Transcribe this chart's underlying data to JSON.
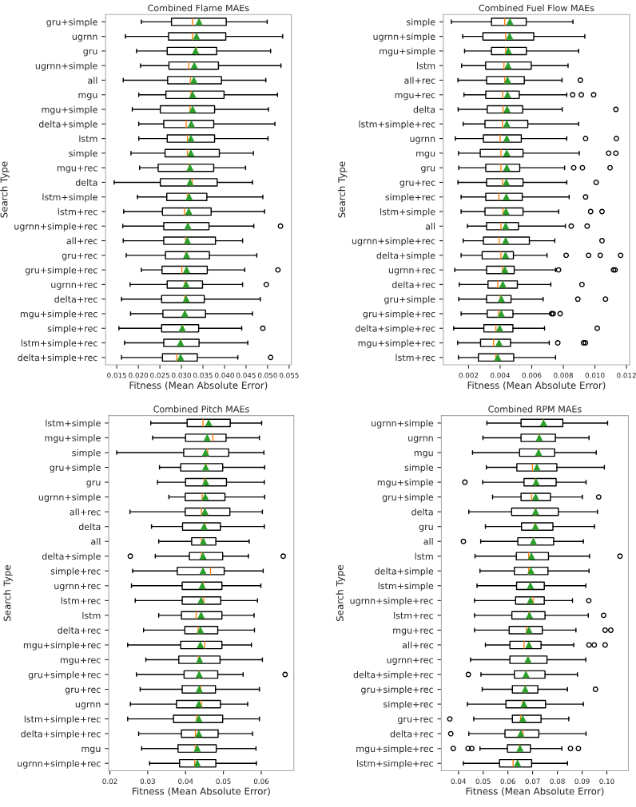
{
  "chart_data": [
    {
      "type": "box",
      "title": "Combined Flame MAEs",
      "xlabel": "Fitness (Mean Absolute Error)",
      "ylabel": "Search Type",
      "orientation": "horizontal",
      "grid": false,
      "legend": false,
      "categories": [
        "gru+simple",
        "ugrnn",
        "gru",
        "ugrnn+simple",
        "all",
        "mgu",
        "mgu+simple",
        "delta+simple",
        "lstm",
        "simple",
        "mgu+rec",
        "delta",
        "lstm+simple",
        "lstm+rec",
        "ugrnn+simple+rec",
        "all+rec",
        "gru+rec",
        "gru+simple+rec",
        "ugrnn+rec",
        "delta+rec",
        "mgu+simple+rec",
        "simple+rec",
        "lstm+simple+rec",
        "delta+simple+rec"
      ],
      "xlim": [
        0.0124,
        0.0555
      ],
      "xticks": [
        0.015,
        {
          "value": 0.02,
          "label": "0.020"
        },
        0.025,
        {
          "value": 0.03,
          "label": "0.030"
        },
        0.035,
        {
          "value": 0.04,
          "label": "0.040"
        },
        0.045,
        {
          "value": 0.05,
          "label": "0.050"
        },
        0.055
      ],
      "boxes": [
        {
          "low": 0.0207,
          "q1": 0.0277,
          "median": 0.0326,
          "q3": 0.0404,
          "high": 0.0499,
          "mean": 0.0341
        },
        {
          "low": 0.017,
          "q1": 0.027,
          "median": 0.0326,
          "q3": 0.0403,
          "high": 0.0535,
          "mean": 0.0335
        },
        {
          "low": 0.0196,
          "q1": 0.0267,
          "median": 0.0335,
          "q3": 0.0382,
          "high": 0.0507,
          "mean": 0.0333
        },
        {
          "low": 0.0205,
          "q1": 0.0271,
          "median": 0.0317,
          "q3": 0.0386,
          "high": 0.0531,
          "mean": 0.033
        },
        {
          "low": 0.0165,
          "q1": 0.0268,
          "median": 0.0321,
          "q3": 0.0393,
          "high": 0.0496,
          "mean": 0.0329
        },
        {
          "low": 0.0201,
          "q1": 0.0264,
          "median": 0.0322,
          "q3": 0.0399,
          "high": 0.0523,
          "mean": 0.0326
        },
        {
          "low": 0.0186,
          "q1": 0.0251,
          "median": 0.032,
          "q3": 0.0377,
          "high": 0.0502,
          "mean": 0.0326
        },
        {
          "low": 0.0201,
          "q1": 0.0259,
          "median": 0.0311,
          "q3": 0.0375,
          "high": 0.0517,
          "mean": 0.0323
        },
        {
          "low": 0.0201,
          "q1": 0.0267,
          "median": 0.0314,
          "q3": 0.0377,
          "high": 0.0501,
          "mean": 0.0322
        },
        {
          "low": 0.0183,
          "q1": 0.0262,
          "median": 0.0314,
          "q3": 0.0388,
          "high": 0.0467,
          "mean": 0.0322
        },
        {
          "low": 0.0203,
          "q1": 0.0246,
          "median": 0.0318,
          "q3": 0.0375,
          "high": 0.0449,
          "mean": 0.032
        },
        {
          "low": 0.0144,
          "q1": 0.0251,
          "median": 0.0325,
          "q3": 0.0383,
          "high": 0.0465,
          "mean": 0.032
        },
        {
          "low": 0.0198,
          "q1": 0.0266,
          "median": 0.0314,
          "q3": 0.0359,
          "high": 0.0489,
          "mean": 0.0318
        },
        {
          "low": 0.0166,
          "q1": 0.0256,
          "median": 0.0307,
          "q3": 0.0369,
          "high": 0.0493,
          "mean": 0.0317
        },
        {
          "low": 0.0164,
          "q1": 0.0259,
          "median": 0.0316,
          "q3": 0.0364,
          "high": 0.0468,
          "mean": 0.0315,
          "outliers": [
            0.053
          ]
        },
        {
          "low": 0.0165,
          "q1": 0.0259,
          "median": 0.031,
          "q3": 0.0379,
          "high": 0.0442,
          "mean": 0.0314
        },
        {
          "low": 0.0172,
          "q1": 0.0263,
          "median": 0.031,
          "q3": 0.0365,
          "high": 0.0475,
          "mean": 0.0312
        },
        {
          "low": 0.0207,
          "q1": 0.0255,
          "median": 0.0301,
          "q3": 0.036,
          "high": 0.0447,
          "mean": 0.0312,
          "outliers": [
            0.0524
          ]
        },
        {
          "low": 0.0181,
          "q1": 0.0267,
          "median": 0.0308,
          "q3": 0.0349,
          "high": 0.0442,
          "mean": 0.0311,
          "outliers": [
            0.0497
          ]
        },
        {
          "low": 0.0161,
          "q1": 0.0254,
          "median": 0.0308,
          "q3": 0.0353,
          "high": 0.0483,
          "mean": 0.0311
        },
        {
          "low": 0.0182,
          "q1": 0.0257,
          "median": 0.0309,
          "q3": 0.0356,
          "high": 0.0465,
          "mean": 0.0308
        },
        {
          "low": 0.0155,
          "q1": 0.0254,
          "median": 0.0303,
          "q3": 0.034,
          "high": 0.044,
          "mean": 0.0302,
          "outliers": [
            0.0489
          ]
        },
        {
          "low": 0.0168,
          "q1": 0.0259,
          "median": 0.0299,
          "q3": 0.0341,
          "high": 0.0454,
          "mean": 0.0298
        },
        {
          "low": 0.0161,
          "q1": 0.0256,
          "median": 0.0289,
          "q3": 0.0337,
          "high": 0.0431,
          "mean": 0.0298,
          "outliers": [
            0.0507
          ]
        }
      ]
    },
    {
      "type": "box",
      "title": "Combined Fuel Flow MAEs",
      "xlabel": "Fitness (Mean Absolute Error)",
      "ylabel": "Search Type",
      "orientation": "horizontal",
      "grid": false,
      "legend": false,
      "categories": [
        "simple",
        "ugrnn+simple",
        "mgu+simple",
        "lstm",
        "all+rec",
        "mgu+rec",
        "delta",
        "lstm+simple+rec",
        "ugrnn",
        "mgu",
        "gru",
        "gru+rec",
        "simple+rec",
        "lstm+simple",
        "all",
        "ugrnn+simple+rec",
        "delta+simple",
        "ugrnn+rec",
        "delta+rec",
        "gru+simple",
        "gru+simple+rec",
        "delta+simple+rec",
        "mgu+simple+rec",
        "lstm+rec"
      ],
      "xlim": [
        0.0004,
        0.0122
      ],
      "xticks": [
        0.002,
        0.004,
        0.006,
        0.008,
        {
          "value": 0.01,
          "label": "0.010"
        },
        0.012
      ],
      "boxes": [
        {
          "low": 0.00091,
          "q1": 0.00345,
          "median": 0.00429,
          "q3": 0.00565,
          "high": 0.00861,
          "mean": 0.00462
        },
        {
          "low": 0.00163,
          "q1": 0.00291,
          "median": 0.00435,
          "q3": 0.00613,
          "high": 0.00936,
          "mean": 0.0046
        },
        {
          "low": 0.00175,
          "q1": 0.00345,
          "median": 0.00435,
          "q3": 0.00566,
          "high": 0.00897,
          "mean": 0.00452
        },
        {
          "low": 0.00156,
          "q1": 0.00308,
          "median": 0.00424,
          "q3": 0.00597,
          "high": 0.0083,
          "mean": 0.0045
        },
        {
          "low": 0.00133,
          "q1": 0.00314,
          "median": 0.00429,
          "q3": 0.00553,
          "high": 0.00792,
          "mean": 0.00447,
          "outliers": [
            0.00908
          ]
        },
        {
          "low": 0.00171,
          "q1": 0.00309,
          "median": 0.00415,
          "q3": 0.00521,
          "high": 0.00822,
          "mean": 0.00447,
          "outliers": [
            0.00859,
            0.00914,
            0.00992
          ]
        },
        {
          "low": 0.00134,
          "q1": 0.00318,
          "median": 0.00418,
          "q3": 0.00543,
          "high": 0.00793,
          "mean": 0.00444,
          "outliers": [
            0.01133
          ]
        },
        {
          "low": 0.00166,
          "q1": 0.00304,
          "median": 0.00415,
          "q3": 0.00575,
          "high": 0.00897,
          "mean": 0.00442
        },
        {
          "low": 0.00116,
          "q1": 0.00294,
          "median": 0.004,
          "q3": 0.00534,
          "high": 0.00822,
          "mean": 0.00442,
          "outliers": [
            0.00941,
            0.01136
          ]
        },
        {
          "low": 0.00136,
          "q1": 0.00274,
          "median": 0.00405,
          "q3": 0.00545,
          "high": 0.00901,
          "mean": 0.00442,
          "outliers": [
            0.01087,
            0.01133
          ]
        },
        {
          "low": 0.00138,
          "q1": 0.00309,
          "median": 0.00405,
          "q3": 0.00524,
          "high": 0.00808,
          "mean": 0.00442,
          "outliers": [
            0.00866,
            0.00921,
            0.01096
          ]
        },
        {
          "low": 0.00133,
          "q1": 0.00314,
          "median": 0.00415,
          "q3": 0.00545,
          "high": 0.00822,
          "mean": 0.00439,
          "outliers": [
            0.01008
          ]
        },
        {
          "low": 0.00153,
          "q1": 0.00309,
          "median": 0.00392,
          "q3": 0.0054,
          "high": 0.00837,
          "mean": 0.00439,
          "outliers": [
            0.00941
          ]
        },
        {
          "low": 0.00153,
          "q1": 0.00304,
          "median": 0.00418,
          "q3": 0.00545,
          "high": 0.00771,
          "mean": 0.00437,
          "outliers": [
            0.00973,
            0.01045
          ]
        },
        {
          "low": 0.00193,
          "q1": 0.00314,
          "median": 0.00405,
          "q3": 0.00516,
          "high": 0.00813,
          "mean": 0.00435,
          "outliers": [
            0.0085,
            0.00951
          ]
        },
        {
          "low": 0.00166,
          "q1": 0.00294,
          "median": 0.00395,
          "q3": 0.00585,
          "high": 0.00746,
          "mean": 0.00435,
          "outliers": [
            0.01045
          ]
        },
        {
          "low": 0.00153,
          "q1": 0.00286,
          "median": 0.00405,
          "q3": 0.00484,
          "high": 0.00697,
          "mean": 0.00434,
          "outliers": [
            0.00818,
            0.0096,
            0.01034,
            0.01163
          ]
        },
        {
          "low": 0.00113,
          "q1": 0.00314,
          "median": 0.00415,
          "q3": 0.00489,
          "high": 0.00751,
          "mean": 0.0043,
          "outliers": [
            0.0077,
            0.01118,
            0.01128
          ]
        },
        {
          "low": 0.00141,
          "q1": 0.00323,
          "median": 0.00385,
          "q3": 0.00509,
          "high": 0.00721,
          "mean": 0.00417,
          "outliers": [
            0.00918
          ]
        },
        {
          "low": 0.00138,
          "q1": 0.00314,
          "median": 0.004,
          "q3": 0.00469,
          "high": 0.00672,
          "mean": 0.00408,
          "outliers": [
            0.00892,
            0.01067
          ]
        },
        {
          "low": 0.00153,
          "q1": 0.00318,
          "median": 0.0039,
          "q3": 0.00481,
          "high": 0.00719,
          "mean": 0.00407,
          "outliers": [
            0.00726,
            0.00736,
            0.0078
          ]
        },
        {
          "low": 0.00106,
          "q1": 0.00297,
          "median": 0.00373,
          "q3": 0.00481,
          "high": 0.00681,
          "mean": 0.00397,
          "outliers": [
            0.01015
          ]
        },
        {
          "low": 0.00131,
          "q1": 0.00276,
          "median": 0.00358,
          "q3": 0.00466,
          "high": 0.00711,
          "mean": 0.00393,
          "outliers": [
            0.00765,
            0.00928,
            0.0094
          ]
        },
        {
          "low": 0.00136,
          "q1": 0.00262,
          "median": 0.00373,
          "q3": 0.00486,
          "high": 0.00751,
          "mean": 0.00385
        }
      ]
    },
    {
      "type": "box",
      "title": "Combined Pitch MAEs",
      "xlabel": "Fitness (Mean Absolute Error)",
      "ylabel": "Search Type",
      "orientation": "horizontal",
      "grid": false,
      "legend": false,
      "categories": [
        "lstm+simple",
        "mgu+simple",
        "simple",
        "gru+simple",
        "gru",
        "ugrnn+simple",
        "all+rec",
        "delta",
        "all",
        "delta+simple",
        "simple+rec",
        "ugrnn+rec",
        "lstm+rec",
        "lstm",
        "delta+rec",
        "mgu+simple+rec",
        "mgu+rec",
        "gru+simple+rec",
        "gru+rec",
        "ugrnn",
        "lstm+simple+rec",
        "delta+simple+rec",
        "mgu",
        "ugrnn+simple+rec"
      ],
      "xlim": [
        0.0197,
        0.0686
      ],
      "xticks": [
        0.02,
        0.03,
        0.04,
        0.05,
        0.06
      ],
      "boxes": [
        {
          "low": 0.0308,
          "q1": 0.0404,
          "median": 0.0446,
          "q3": 0.0518,
          "high": 0.0601,
          "mean": 0.0461
        },
        {
          "low": 0.0313,
          "q1": 0.04,
          "median": 0.0472,
          "q3": 0.0507,
          "high": 0.0595,
          "mean": 0.0457
        },
        {
          "low": 0.0218,
          "q1": 0.0395,
          "median": 0.0458,
          "q3": 0.0514,
          "high": 0.0607,
          "mean": 0.0453
        },
        {
          "low": 0.0331,
          "q1": 0.0387,
          "median": 0.0455,
          "q3": 0.0498,
          "high": 0.0609,
          "mean": 0.0453
        },
        {
          "low": 0.0326,
          "q1": 0.04,
          "median": 0.0449,
          "q3": 0.0508,
          "high": 0.0608,
          "mean": 0.0453
        },
        {
          "low": 0.0356,
          "q1": 0.0399,
          "median": 0.0444,
          "q3": 0.0504,
          "high": 0.0609,
          "mean": 0.0452
        },
        {
          "low": 0.0253,
          "q1": 0.0399,
          "median": 0.0442,
          "q3": 0.0517,
          "high": 0.0603,
          "mean": 0.0451
        },
        {
          "low": 0.031,
          "q1": 0.0392,
          "median": 0.0452,
          "q3": 0.0492,
          "high": 0.0608,
          "mean": 0.0449
        },
        {
          "low": 0.0329,
          "q1": 0.0416,
          "median": 0.0442,
          "q3": 0.048,
          "high": 0.0568,
          "mean": 0.0447
        },
        {
          "low": 0.032,
          "q1": 0.041,
          "median": 0.0442,
          "q3": 0.0498,
          "high": 0.0566,
          "mean": 0.0446,
          "outliers": [
            0.0254,
            0.0658
          ]
        },
        {
          "low": 0.026,
          "q1": 0.0378,
          "median": 0.0466,
          "q3": 0.0502,
          "high": 0.0605,
          "mean": 0.0446
        },
        {
          "low": 0.0257,
          "q1": 0.0391,
          "median": 0.0447,
          "q3": 0.0496,
          "high": 0.0599,
          "mean": 0.0444
        },
        {
          "low": 0.0267,
          "q1": 0.0391,
          "median": 0.0448,
          "q3": 0.0493,
          "high": 0.059,
          "mean": 0.0441
        },
        {
          "low": 0.0329,
          "q1": 0.0389,
          "median": 0.0428,
          "q3": 0.0496,
          "high": 0.0581,
          "mean": 0.0441
        },
        {
          "low": 0.0289,
          "q1": 0.0398,
          "median": 0.0433,
          "q3": 0.0485,
          "high": 0.0582,
          "mean": 0.0439
        },
        {
          "low": 0.0247,
          "q1": 0.0387,
          "median": 0.045,
          "q3": 0.0496,
          "high": 0.0574,
          "mean": 0.0439
        },
        {
          "low": 0.0295,
          "q1": 0.0382,
          "median": 0.0434,
          "q3": 0.0491,
          "high": 0.0603,
          "mean": 0.0437
        },
        {
          "low": 0.027,
          "q1": 0.0396,
          "median": 0.0436,
          "q3": 0.0485,
          "high": 0.0552,
          "mean": 0.0436,
          "outliers": [
            0.0663
          ]
        },
        {
          "low": 0.028,
          "q1": 0.0391,
          "median": 0.044,
          "q3": 0.0479,
          "high": 0.0595,
          "mean": 0.0436
        },
        {
          "low": 0.0254,
          "q1": 0.0376,
          "median": 0.0442,
          "q3": 0.0492,
          "high": 0.0564,
          "mean": 0.0435
        },
        {
          "low": 0.0247,
          "q1": 0.0368,
          "median": 0.0429,
          "q3": 0.0498,
          "high": 0.0595,
          "mean": 0.0435
        },
        {
          "low": 0.0276,
          "q1": 0.0389,
          "median": 0.0426,
          "q3": 0.0486,
          "high": 0.0577,
          "mean": 0.0435
        },
        {
          "low": 0.0284,
          "q1": 0.038,
          "median": 0.0426,
          "q3": 0.0481,
          "high": 0.0586,
          "mean": 0.0431
        },
        {
          "low": 0.0305,
          "q1": 0.0384,
          "median": 0.0424,
          "q3": 0.048,
          "high": 0.0587,
          "mean": 0.0431
        }
      ]
    },
    {
      "type": "box",
      "title": "Combined RPM MAEs",
      "xlabel": "Fitness (Mean Absolute Error)",
      "ylabel": "Search Type",
      "orientation": "horizontal",
      "grid": false,
      "legend": false,
      "categories": [
        "ugrnn+simple",
        "ugrnn",
        "mgu",
        "simple",
        "mgu+simple",
        "gru+simple",
        "delta",
        "gru",
        "all",
        "lstm",
        "delta+simple",
        "lstm+simple",
        "ugrnn+simple+rec",
        "lstm+rec",
        "mgu+rec",
        "all+rec",
        "ugrnn+rec",
        "delta+simple+rec",
        "gru+simple+rec",
        "simple+rec",
        "gru+rec",
        "delta+rec",
        "mgu+simple+rec",
        "lstm+simple+rec"
      ],
      "xlim": [
        0.0331,
        0.1087
      ],
      "xticks": [
        0.04,
        0.05,
        0.06,
        0.07,
        0.08,
        0.09,
        {
          "value": 0.1,
          "label": "0.10"
        }
      ],
      "boxes": [
        {
          "low": 0.0515,
          "q1": 0.0653,
          "median": 0.0744,
          "q3": 0.0822,
          "high": 0.1003,
          "mean": 0.0744
        },
        {
          "low": 0.0499,
          "q1": 0.0653,
          "median": 0.0725,
          "q3": 0.0792,
          "high": 0.0928,
          "mean": 0.0727
        },
        {
          "low": 0.0457,
          "q1": 0.0647,
          "median": 0.0726,
          "q3": 0.0789,
          "high": 0.0957,
          "mean": 0.0724
        },
        {
          "low": 0.0513,
          "q1": 0.0636,
          "median": 0.0699,
          "q3": 0.0798,
          "high": 0.099,
          "mean": 0.0717
        },
        {
          "low": 0.0498,
          "q1": 0.0665,
          "median": 0.071,
          "q3": 0.0795,
          "high": 0.0916,
          "mean": 0.0714,
          "outliers": [
            0.0426
          ]
        },
        {
          "low": 0.0538,
          "q1": 0.0653,
          "median": 0.0696,
          "q3": 0.0772,
          "high": 0.0901,
          "mean": 0.0712,
          "outliers": [
            0.0967
          ]
        },
        {
          "low": 0.0442,
          "q1": 0.0615,
          "median": 0.071,
          "q3": 0.0804,
          "high": 0.0962,
          "mean": 0.0712
        },
        {
          "low": 0.0509,
          "q1": 0.0655,
          "median": 0.0708,
          "q3": 0.0782,
          "high": 0.095,
          "mean": 0.0711
        },
        {
          "low": 0.049,
          "q1": 0.064,
          "median": 0.0703,
          "q3": 0.0785,
          "high": 0.0905,
          "mean": 0.0703,
          "outliers": [
            0.042
          ]
        },
        {
          "low": 0.0467,
          "q1": 0.0634,
          "median": 0.0684,
          "q3": 0.0764,
          "high": 0.093,
          "mean": 0.0695,
          "outliers": [
            0.1053
          ]
        },
        {
          "low": 0.0487,
          "q1": 0.0626,
          "median": 0.0684,
          "q3": 0.0762,
          "high": 0.0928,
          "mean": 0.0693
        },
        {
          "low": 0.0475,
          "q1": 0.0635,
          "median": 0.069,
          "q3": 0.0747,
          "high": 0.0915,
          "mean": 0.0691
        },
        {
          "low": 0.0465,
          "q1": 0.0631,
          "median": 0.0702,
          "q3": 0.0747,
          "high": 0.0861,
          "mean": 0.0691,
          "outliers": [
            0.0927
          ]
        },
        {
          "low": 0.0465,
          "q1": 0.0616,
          "median": 0.0684,
          "q3": 0.075,
          "high": 0.0925,
          "mean": 0.0687,
          "outliers": [
            0.0987
          ]
        },
        {
          "low": 0.0465,
          "q1": 0.0605,
          "median": 0.0675,
          "q3": 0.0739,
          "high": 0.0875,
          "mean": 0.0685,
          "outliers": [
            0.0993,
            0.1016
          ]
        },
        {
          "low": 0.0509,
          "q1": 0.0608,
          "median": 0.0665,
          "q3": 0.0734,
          "high": 0.0866,
          "mean": 0.0685,
          "outliers": [
            0.0928,
            0.0949,
            0.0993
          ]
        },
        {
          "low": 0.0449,
          "q1": 0.0608,
          "median": 0.0681,
          "q3": 0.0758,
          "high": 0.0915,
          "mean": 0.0681
        },
        {
          "low": 0.0491,
          "q1": 0.0626,
          "median": 0.0672,
          "q3": 0.075,
          "high": 0.0881,
          "mean": 0.0673,
          "outliers": [
            0.044
          ]
        },
        {
          "low": 0.0496,
          "q1": 0.0618,
          "median": 0.0669,
          "q3": 0.0721,
          "high": 0.0841,
          "mean": 0.067,
          "outliers": [
            0.0954
          ]
        },
        {
          "low": 0.0436,
          "q1": 0.0592,
          "median": 0.0659,
          "q3": 0.0752,
          "high": 0.0905,
          "mean": 0.0665
        },
        {
          "low": 0.0462,
          "q1": 0.0618,
          "median": 0.0651,
          "q3": 0.0734,
          "high": 0.0846,
          "mean": 0.066,
          "outliers": [
            0.0365
          ]
        },
        {
          "low": 0.0442,
          "q1": 0.0588,
          "median": 0.0661,
          "q3": 0.0725,
          "high": 0.0916,
          "mean": 0.0652,
          "outliers": [
            0.0369
          ]
        },
        {
          "low": 0.0487,
          "q1": 0.0598,
          "median": 0.0646,
          "q3": 0.0691,
          "high": 0.0818,
          "mean": 0.0649,
          "outliers": [
            0.0379,
            0.0439,
            0.0454,
            0.0853,
            0.0885
          ]
        },
        {
          "low": 0.042,
          "q1": 0.0566,
          "median": 0.0621,
          "q3": 0.0696,
          "high": 0.0841,
          "mean": 0.0639
        }
      ]
    }
  ]
}
